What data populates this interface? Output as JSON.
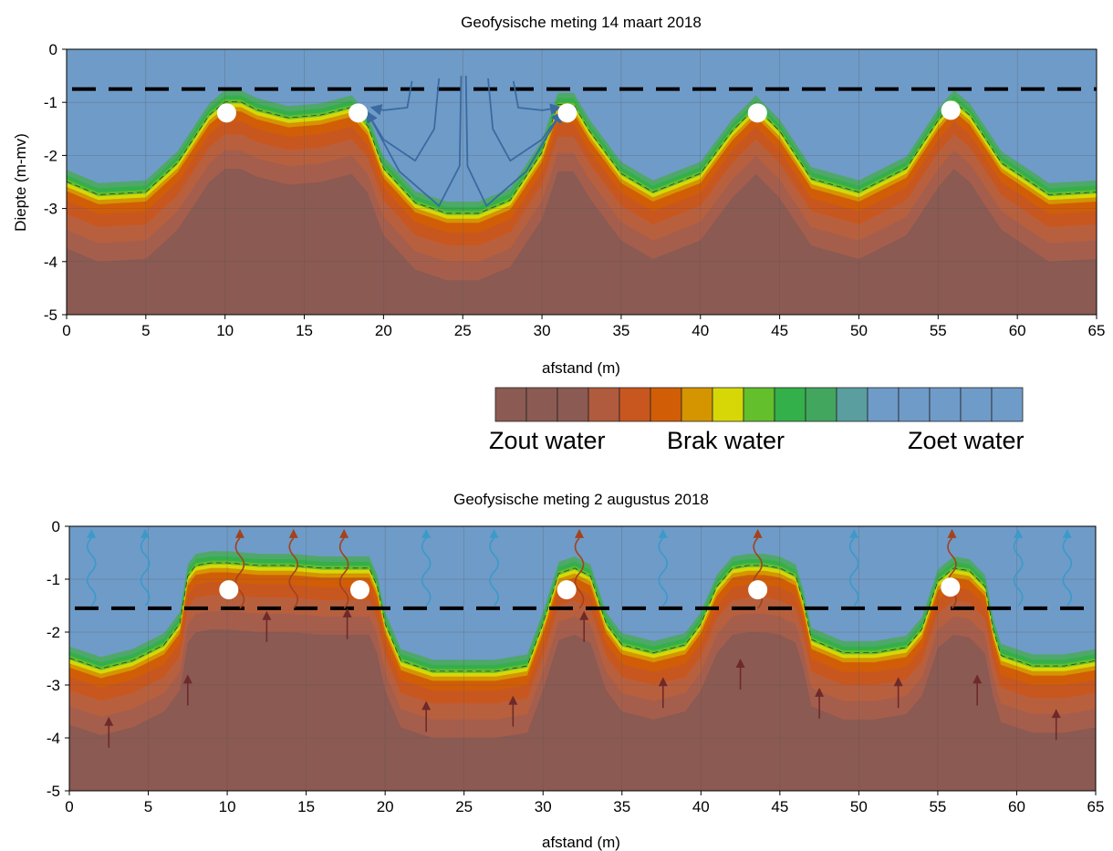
{
  "legend": {
    "zout_label": "Zout water",
    "brak_label": "Brak water",
    "zoet_label": "Zoet water",
    "colors": [
      "#8b5a52",
      "#8b5a52",
      "#8b5a52",
      "#b05a3e",
      "#c8571f",
      "#d15e06",
      "#d49500",
      "#d7d708",
      "#63bf2b",
      "#34b04a",
      "#43a65e",
      "#5a9ea0",
      "#6f9bc8",
      "#6f9bc8",
      "#6f9bc8",
      "#6f9bc8",
      "#6f9bc8"
    ]
  },
  "chart_data": [
    {
      "type": "heatmap",
      "title": "Geofysische meting 14 maart 2018",
      "xlabel": "afstand (m)",
      "ylabel": "Diepte (m-mv)",
      "xlim": [
        0,
        65
      ],
      "ylim": [
        -5,
        0
      ],
      "xticks": [
        "0",
        "5",
        "10",
        "15",
        "20",
        "25",
        "30",
        "35",
        "40",
        "45",
        "50",
        "55",
        "60",
        "65"
      ],
      "yticks": [
        "0",
        "-1",
        "-2",
        "-3",
        "-4",
        "-5"
      ],
      "grid": true,
      "groundwater_level": -0.75,
      "fresh_salt_interface": {
        "x": [
          0,
          2,
          5,
          7,
          9,
          10,
          11,
          12,
          14,
          16,
          18,
          19,
          20,
          22,
          24,
          26,
          28,
          30,
          31,
          32,
          33,
          35,
          37,
          40,
          42,
          43.5,
          45,
          47,
          50,
          53,
          55,
          56,
          57,
          59,
          62,
          65
        ],
        "y": [
          -2.55,
          -2.8,
          -2.75,
          -2.2,
          -1.3,
          -1.05,
          -1.05,
          -1.2,
          -1.35,
          -1.3,
          -1.15,
          -1.5,
          -2.3,
          -2.95,
          -3.15,
          -3.15,
          -2.9,
          -2.0,
          -1.1,
          -1.1,
          -1.6,
          -2.4,
          -2.75,
          -2.4,
          -1.6,
          -1.15,
          -1.6,
          -2.5,
          -2.75,
          -2.3,
          -1.4,
          -1.05,
          -1.3,
          -2.2,
          -2.8,
          -2.75
        ]
      },
      "drains": [
        {
          "x": 10.1,
          "y": -1.2
        },
        {
          "x": 18.4,
          "y": -1.2
        },
        {
          "x": 31.6,
          "y": -1.2
        },
        {
          "x": 43.6,
          "y": -1.2
        },
        {
          "x": 55.8,
          "y": -1.15
        }
      ],
      "flow_lines": [
        {
          "x": [
            21.8,
            21.5,
            20,
            19.3
          ],
          "y": [
            -0.6,
            -1.1,
            -1.15,
            -1.1
          ]
        },
        {
          "x": [
            23.5,
            23.2,
            22,
            20,
            19
          ],
          "y": [
            -0.55,
            -1.5,
            -2.1,
            -1.7,
            -1.2
          ]
        },
        {
          "x": [
            24.9,
            24.8,
            23.5,
            21,
            19
          ],
          "y": [
            -0.5,
            -2.2,
            -2.95,
            -2.3,
            -1.2
          ]
        },
        {
          "x": [
            25.2,
            25.3,
            26.5,
            29,
            31.2
          ],
          "y": [
            -0.5,
            -2.2,
            -2.95,
            -2.3,
            -1.2
          ]
        },
        {
          "x": [
            26.6,
            26.9,
            28,
            30,
            31.2
          ],
          "y": [
            -0.55,
            -1.5,
            -2.1,
            -1.7,
            -1.2
          ]
        },
        {
          "x": [
            28.2,
            28.5,
            30,
            31.1
          ],
          "y": [
            -0.6,
            -1.1,
            -1.15,
            -1.1
          ]
        }
      ]
    },
    {
      "type": "heatmap",
      "title": "Geofysische meting 2 augustus 2018",
      "xlabel": "afstand (m)",
      "ylabel": "",
      "xlim": [
        0,
        65
      ],
      "ylim": [
        -5,
        0
      ],
      "xticks": [
        "0",
        "5",
        "10",
        "15",
        "20",
        "25",
        "30",
        "35",
        "40",
        "45",
        "50",
        "55",
        "60",
        "65"
      ],
      "yticks": [
        "0",
        "-1",
        "-2",
        "-3",
        "-4",
        "-5"
      ],
      "grid": true,
      "groundwater_level": -1.55,
      "fresh_salt_interface": {
        "x": [
          0,
          2,
          4,
          6,
          7,
          7.5,
          8,
          9,
          10,
          12,
          14,
          16,
          18,
          19,
          19.5,
          20,
          21,
          23,
          25,
          27,
          29,
          30,
          31,
          32,
          33,
          34,
          35,
          37,
          39,
          40,
          41,
          42,
          43,
          44,
          45,
          46,
          46.5,
          47,
          49,
          51,
          53,
          54,
          55,
          56,
          57,
          58,
          58.5,
          59,
          61,
          63,
          65
        ],
        "y": [
          -2.55,
          -2.75,
          -2.6,
          -2.3,
          -1.9,
          -1.0,
          -0.8,
          -0.75,
          -0.75,
          -0.8,
          -0.8,
          -0.85,
          -0.85,
          -0.85,
          -1.2,
          -1.9,
          -2.6,
          -2.8,
          -2.8,
          -2.8,
          -2.7,
          -1.9,
          -0.95,
          -0.85,
          -1.0,
          -1.9,
          -2.3,
          -2.45,
          -2.3,
          -1.9,
          -1.2,
          -0.85,
          -0.8,
          -0.8,
          -0.85,
          -1.0,
          -1.5,
          -2.2,
          -2.45,
          -2.45,
          -2.35,
          -2.0,
          -1.1,
          -0.85,
          -0.9,
          -1.2,
          -2.0,
          -2.5,
          -2.7,
          -2.7,
          -2.6
        ]
      },
      "drains": [
        {
          "x": 10.1,
          "y": -1.2
        },
        {
          "x": 18.4,
          "y": -1.2
        },
        {
          "x": 31.5,
          "y": -1.2
        },
        {
          "x": 43.6,
          "y": -1.2
        },
        {
          "x": 55.8,
          "y": -1.15
        }
      ],
      "evaporation_fresh_x": [
        1.4,
        4.8,
        22.6,
        26.9,
        37.6,
        49.7,
        60.1,
        63.2
      ],
      "evaporation_salt_x": [
        10.8,
        14.2,
        17.4,
        32.3,
        43.6,
        55.9
      ],
      "upward_seepage": [
        {
          "x": 2.5,
          "y": -3.6
        },
        {
          "x": 7.5,
          "y": -2.8
        },
        {
          "x": 12.5,
          "y": -1.6
        },
        {
          "x": 17.6,
          "y": -1.55
        },
        {
          "x": 22.6,
          "y": -3.3
        },
        {
          "x": 28.1,
          "y": -3.2
        },
        {
          "x": 32.6,
          "y": -1.6
        },
        {
          "x": 37.6,
          "y": -2.85
        },
        {
          "x": 42.5,
          "y": -2.5
        },
        {
          "x": 47.5,
          "y": -3.05
        },
        {
          "x": 52.5,
          "y": -2.85
        },
        {
          "x": 57.5,
          "y": -2.8
        },
        {
          "x": 62.5,
          "y": -3.45
        }
      ]
    }
  ]
}
